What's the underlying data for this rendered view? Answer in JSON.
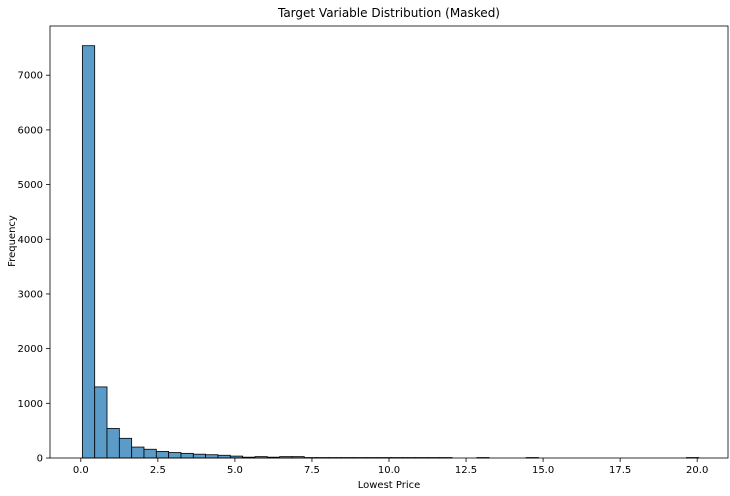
{
  "chart_data": {
    "type": "bar",
    "title": "Target Variable Distribution (Masked)",
    "xlabel": "Lowest Price",
    "ylabel": "Frequency",
    "xlim": [
      -1.0,
      21.0
    ],
    "ylim": [
      0,
      7900
    ],
    "xticks": [
      0.0,
      2.5,
      5.0,
      7.5,
      10.0,
      12.5,
      15.0,
      17.5,
      20.0
    ],
    "xtick_labels": [
      "0.0",
      "2.5",
      "5.0",
      "7.5",
      "10.0",
      "12.5",
      "15.0",
      "17.5",
      "20.0"
    ],
    "yticks": [
      0,
      1000,
      2000,
      3000,
      4000,
      5000,
      6000,
      7000
    ],
    "ytick_labels": [
      "0",
      "1000",
      "2000",
      "3000",
      "4000",
      "5000",
      "6000",
      "7000"
    ],
    "bin_start": 0.05,
    "bin_width": 0.4,
    "bin_counts": [
      7540,
      1300,
      540,
      360,
      200,
      160,
      120,
      100,
      85,
      70,
      60,
      50,
      35,
      15,
      25,
      15,
      25,
      25,
      8,
      8,
      8,
      8,
      8,
      8,
      8,
      8,
      8,
      8,
      8,
      8,
      0,
      0,
      8,
      0,
      0,
      0,
      8,
      0,
      0,
      0,
      0,
      0,
      0,
      0,
      0,
      0,
      0,
      0,
      0,
      8
    ],
    "bar_fill": "#5b9bc8",
    "bar_edge": "#000000",
    "grid": false,
    "legend": "none"
  }
}
